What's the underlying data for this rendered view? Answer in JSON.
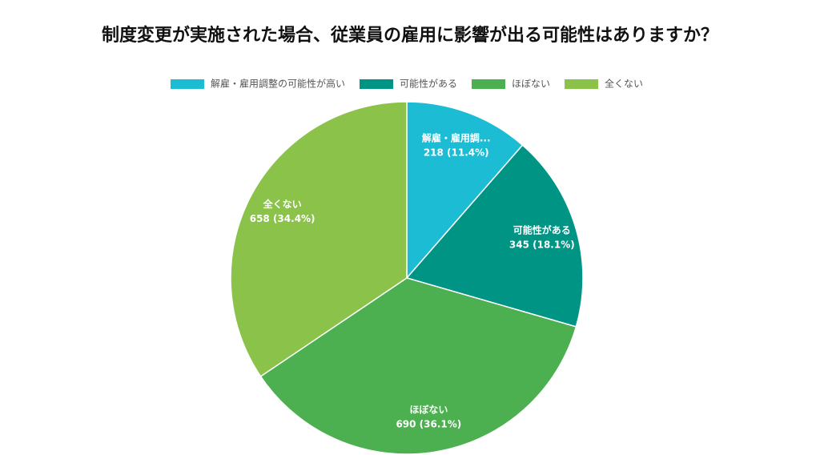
{
  "chart_data": {
    "type": "pie",
    "title": "制度変更が実施された場合、従業員の雇用に影響が出る可能性はありますか？",
    "categories": [
      "解雇・雇用調整の可能性が高い",
      "可能性がある",
      "ほぼない",
      "全くない"
    ],
    "slice_labels": [
      "解雇・雇用調...",
      "可能性がある",
      "ほぼない",
      "全くない"
    ],
    "values": [
      218,
      345,
      690,
      658
    ],
    "value_labels": [
      "218 (11.4%)",
      "345 (18.1%)",
      "690 (36.1%)",
      "658 (34.4%)"
    ],
    "colors": [
      "#1cbcd4",
      "#009485",
      "#4caf50",
      "#8bc34a"
    ],
    "legend": "top"
  }
}
